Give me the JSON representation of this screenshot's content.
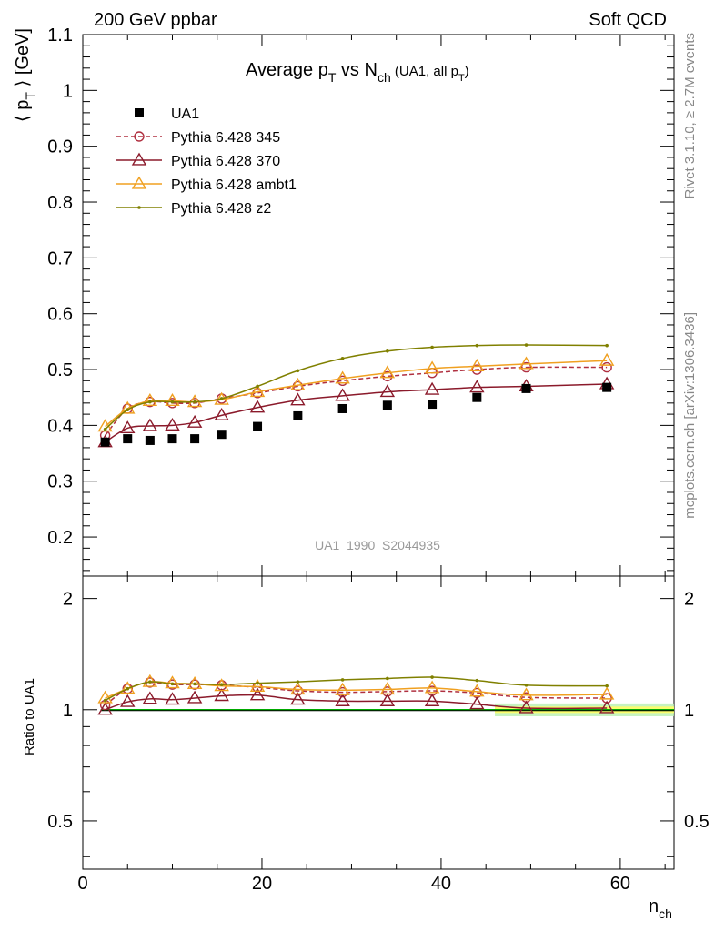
{
  "header": {
    "left": "200 GeV ppbar",
    "right": "Soft QCD"
  },
  "side_labels": {
    "top": "Rivet 3.1.10, ≥ 2.7M events",
    "bottom": "mcplots.cern.ch [arXiv:1306.3436]"
  },
  "chart_data": {
    "type": "line",
    "title_main": "Average p",
    "title_sub_T": "T",
    "title_mid": " vs N",
    "title_sub_ch": "ch",
    "title_paren_open": " (UA1, all p",
    "title_paren_close": ")",
    "watermark": "UA1_1990_S2044935",
    "ylabel_main": "⟨ p",
    "ylabel_sub": "T",
    "ylabel_tail": " ⟩ [GeV]",
    "ylabel_ratio": "Ratio to UA1",
    "xlabel_main": "n",
    "xlabel_sub": "ch",
    "xlim": [
      0,
      66
    ],
    "ylim_main": [
      0.13,
      1.1
    ],
    "ylim_ratio": [
      0.37,
      2.3
    ],
    "ratio_log_scale": true,
    "xticks": [
      0,
      20,
      40,
      60
    ],
    "yticks_main": [
      0.2,
      0.3,
      0.4,
      0.5,
      0.6,
      0.7,
      0.8,
      0.9,
      1,
      1.1
    ],
    "ytick_labels_main": [
      "0.2",
      "0.3",
      "0.4",
      "0.5",
      "0.6",
      "0.7",
      "0.8",
      "0.9",
      "1",
      "1.1"
    ],
    "yticks_ratio": [
      0.5,
      1,
      2
    ],
    "ytick_labels_ratio": [
      "0.5",
      "1",
      "2"
    ],
    "legend_position": "top-left",
    "data": {
      "name": "UA1",
      "color": "#000000",
      "x": [
        2.5,
        5,
        7.5,
        10,
        12.5,
        15.5,
        19.5,
        24,
        29,
        34,
        39,
        44,
        49.5,
        58.5
      ],
      "y": [
        0.37,
        0.376,
        0.373,
        0.376,
        0.376,
        0.384,
        0.398,
        0.417,
        0.43,
        0.436,
        0.438,
        0.45,
        0.466,
        0.468
      ]
    },
    "series": [
      {
        "name": "Pythia 6.428 345",
        "color": "#b03040",
        "marker": "circle",
        "dashed": true,
        "x": [
          2.5,
          5,
          7.5,
          10,
          12.5,
          15.5,
          19.5,
          24,
          29,
          34,
          39,
          44,
          49.5,
          58.5
        ],
        "y": [
          0.382,
          0.43,
          0.442,
          0.44,
          0.44,
          0.448,
          0.458,
          0.47,
          0.48,
          0.488,
          0.494,
          0.5,
          0.504,
          0.504
        ],
        "ratio": [
          1.03,
          1.14,
          1.185,
          1.17,
          1.17,
          1.165,
          1.15,
          1.125,
          1.115,
          1.12,
          1.125,
          1.11,
          1.08,
          1.075
        ]
      },
      {
        "name": "Pythia 6.428 370",
        "color": "#8b1a2b",
        "marker": "triangle",
        "dashed": false,
        "x": [
          2.5,
          5,
          7.5,
          10,
          12.5,
          15.5,
          19.5,
          24,
          29,
          34,
          39,
          44,
          49.5,
          58.5
        ],
        "y": [
          0.37,
          0.395,
          0.399,
          0.4,
          0.405,
          0.418,
          0.432,
          0.445,
          0.453,
          0.46,
          0.464,
          0.468,
          0.47,
          0.474
        ],
        "ratio": [
          1.0,
          1.05,
          1.07,
          1.065,
          1.075,
          1.09,
          1.095,
          1.065,
          1.055,
          1.055,
          1.055,
          1.035,
          1.01,
          1.01
        ]
      },
      {
        "name": "Pythia 6.428 ambt1",
        "color": "#f0a020",
        "marker": "triangle",
        "dashed": false,
        "x": [
          2.5,
          5,
          7.5,
          10,
          12.5,
          15.5,
          19.5,
          24,
          29,
          34,
          39,
          44,
          49.5,
          58.5
        ],
        "y": [
          0.398,
          0.43,
          0.444,
          0.444,
          0.442,
          0.446,
          0.46,
          0.472,
          0.484,
          0.494,
          0.502,
          0.506,
          0.51,
          0.516
        ],
        "ratio": [
          1.075,
          1.14,
          1.19,
          1.18,
          1.175,
          1.16,
          1.155,
          1.135,
          1.13,
          1.135,
          1.145,
          1.12,
          1.095,
          1.1
        ]
      },
      {
        "name": "Pythia 6.428 z2",
        "color": "#808000",
        "marker": "dot",
        "dashed": false,
        "x": [
          2.5,
          5,
          7.5,
          10,
          12.5,
          15.5,
          19.5,
          24,
          29,
          34,
          39,
          44,
          49.5,
          58.5
        ],
        "y": [
          0.393,
          0.428,
          0.442,
          0.442,
          0.442,
          0.448,
          0.47,
          0.498,
          0.52,
          0.533,
          0.54,
          0.543,
          0.544,
          0.543
        ],
        "ratio": [
          1.06,
          1.14,
          1.19,
          1.175,
          1.175,
          1.17,
          1.18,
          1.19,
          1.205,
          1.215,
          1.225,
          1.2,
          1.165,
          1.16
        ]
      }
    ],
    "uncertainty_band": {
      "color_inner": "#ffff66",
      "color_outer": "#b8f0b0",
      "x": [
        46,
        66
      ]
    }
  }
}
